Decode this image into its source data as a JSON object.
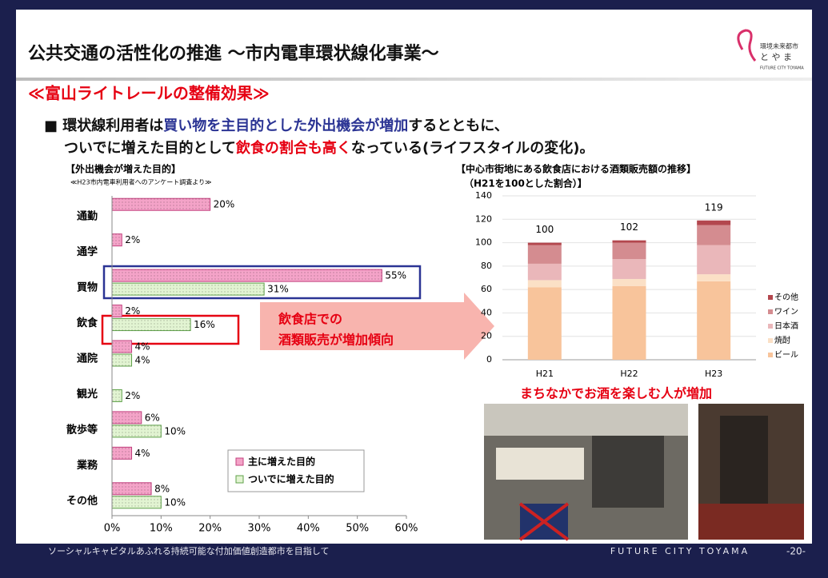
{
  "header": {
    "title": "公共交通の活性化の推進 ～市内電車環状線化事業～",
    "logo": {
      "line1": "環境未来都市",
      "line2": "と や ま",
      "line3": "FUTURE CITY TOYAMA"
    }
  },
  "subtitle": "≪富山ライトレールの整備効果≫",
  "bullet": {
    "lines": [
      [
        {
          "text": "■ 環状線利用者は",
          "color": "#111111"
        },
        {
          "text": "買い物を主目的とした外出機会が増加",
          "color": "#2b3494"
        },
        {
          "text": "するとともに、",
          "color": "#111111"
        }
      ],
      [
        {
          "text": "ついでに増えた目的として",
          "color": "#111111"
        },
        {
          "text": "飲食の割合も高く",
          "color": "#e60012"
        },
        {
          "text": "なっている(ライフスタイルの変化)。",
          "color": "#111111"
        }
      ]
    ]
  },
  "chart_data": [
    {
      "type": "hbar",
      "title": "【外出機会が増えた目的】",
      "subtitle": "≪H23市内電車利用者へのアンケート調査より≫",
      "categories": [
        "通勤",
        "通学",
        "買物",
        "飲食",
        "通院",
        "観光",
        "散歩等",
        "業務",
        "その他"
      ],
      "series": [
        {
          "name": "主に増えた目的",
          "color": "#f4a3c8",
          "values": [
            20,
            2,
            55,
            2,
            4,
            null,
            6,
            4,
            8
          ],
          "value_labels": [
            "20%",
            "2%",
            "55%",
            "2%",
            "4%",
            null,
            "6%",
            "4%",
            "8%"
          ]
        },
        {
          "name": "ついでに増えた目的",
          "color": "#e2f4d2",
          "values": [
            null,
            null,
            31,
            16,
            4,
            2,
            10,
            null,
            10
          ],
          "value_labels": [
            null,
            null,
            "31%",
            "16%",
            "4%",
            "2%",
            "10%",
            null,
            "10%"
          ]
        }
      ],
      "xlim": [
        0,
        60
      ],
      "xticks": [
        {
          "value": 0,
          "label": "0%"
        },
        {
          "value": 10,
          "label": "10%"
        },
        {
          "value": 20,
          "label": "20%"
        },
        {
          "value": 30,
          "label": "30%"
        },
        {
          "value": 40,
          "label": "40%"
        },
        {
          "value": 50,
          "label": "50%"
        },
        {
          "value": 60,
          "label": "60%"
        }
      ],
      "legend": "lower-right",
      "annotation": [
        "飲食店での",
        "酒類販売が増加傾向"
      ]
    },
    {
      "type": "stacked_bar",
      "title": "【中心市街地にある飲食店における酒類販売額の推移】",
      "subtitle": "（H21を100とした割合）】",
      "categories": [
        "H21",
        "H22",
        "H23"
      ],
      "series": [
        {
          "name": "ビール",
          "color": "#f8c49b",
          "values": [
            62,
            63,
            67
          ]
        },
        {
          "name": "焼酎",
          "color": "#fbe0c6",
          "values": [
            6,
            6,
            6
          ]
        },
        {
          "name": "日本酒",
          "color": "#eab7ba",
          "values": [
            14,
            17,
            25
          ]
        },
        {
          "name": "ワイン",
          "color": "#d48c90",
          "values": [
            16,
            14,
            17
          ]
        },
        {
          "name": "その他",
          "color": "#b3474e",
          "values": [
            2,
            2,
            4
          ]
        }
      ],
      "totals": [
        100,
        102,
        119
      ],
      "ylim": [
        0,
        140
      ],
      "yticks": [
        0,
        20,
        40,
        60,
        80,
        100,
        120,
        140
      ],
      "grid": true,
      "legend": "right"
    }
  ],
  "photo_caption": "まちなかでお酒を楽しむ人が増加",
  "footer": {
    "slogan": "ソーシャルキャピタルあふれる持続可能な付加価値創造都市を目指して",
    "brand": "FUTURE CITY TOYAMA",
    "page": "-20-"
  }
}
